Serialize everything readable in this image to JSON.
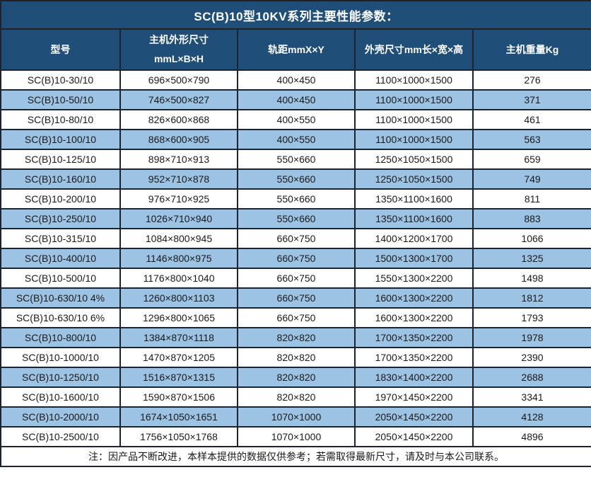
{
  "title": "SC(B)10型10KV系列主要性能参数：",
  "table": {
    "headers": [
      "型号",
      "主机外形尺寸\nmmL×B×H",
      "轨距mmX×Y",
      "外壳尺寸mm长×宽×高",
      "主机重量Kg"
    ],
    "rows": [
      [
        "SC(B)10-30/10",
        "696×500×790",
        "400×450",
        "1100×1000×1500",
        "276"
      ],
      [
        "SC(B)10-50/10",
        "746×500×827",
        "400×450",
        "1100×1000×1500",
        "371"
      ],
      [
        "SC(B)10-80/10",
        "826×600×868",
        "400×550",
        "1100×1000×1500",
        "461"
      ],
      [
        "SC(B)10-100/10",
        "868×600×905",
        "400×550",
        "1100×1000×1500",
        "563"
      ],
      [
        "SC(B)10-125/10",
        "898×710×913",
        "550×660",
        "1250×1050×1500",
        "659"
      ],
      [
        "SC(B)10-160/10",
        "952×710×878",
        "550×660",
        "1250×1050×1500",
        "749"
      ],
      [
        "SC(B)10-200/10",
        "976×710×925",
        "550×660",
        "1350×1100×1600",
        "811"
      ],
      [
        "SC(B)10-250/10",
        "1026×710×940",
        "550×660",
        "1350×1100×1600",
        "883"
      ],
      [
        "SC(B)10-315/10",
        "1084×800×945",
        "660×750",
        "1400×1200×1700",
        "1066"
      ],
      [
        "SC(B)10-400/10",
        "1146×800×975",
        "660×750",
        "1500×1300×1700",
        "1325"
      ],
      [
        "SC(B)10-500/10",
        "1176×800×1040",
        "660×750",
        "1550×1300×2200",
        "1498"
      ],
      [
        "SC(B)10-630/10 4%",
        "1260×800×1103",
        "660×750",
        "1600×1300×2200",
        "1812"
      ],
      [
        "SC(B)10-630/10 6%",
        "1296×800×1065",
        "660×750",
        "1600×1300×2200",
        "1793"
      ],
      [
        "SC(B)10-800/10",
        "1384×870×1118",
        "820×820",
        "1700×1350×2200",
        "1978"
      ],
      [
        "SC(B)10-1000/10",
        "1470×870×1205",
        "820×820",
        "1700×1350×2200",
        "2390"
      ],
      [
        "SC(B)10-1250/10",
        "1516×870×1315",
        "820×820",
        "1830×1400×2200",
        "2688"
      ],
      [
        "SC(B)10-1600/10",
        "1590×870×1506",
        "820×820",
        "1970×1450×2200",
        "3341"
      ],
      [
        "SC(B)10-2000/10",
        "1674×1050×1651",
        "1070×1000",
        "2050×1450×2200",
        "4128"
      ],
      [
        "SC(B)10-2500/10",
        "1756×1050×1768",
        "1070×1000",
        "2050×1450×2200",
        "4896"
      ]
    ]
  },
  "note": "注：因产品不断改进，本样本提供的数据仅供参考；若需取得最新尺寸，请及时与本公司联系。",
  "colors": {
    "header_bg": "#1f4e79",
    "alt_row_bg": "#9cc2e4",
    "row_bg": "#ffffff",
    "border": "#1e242c",
    "header_text": "#ffffff",
    "body_text": "#1a1a1a"
  }
}
